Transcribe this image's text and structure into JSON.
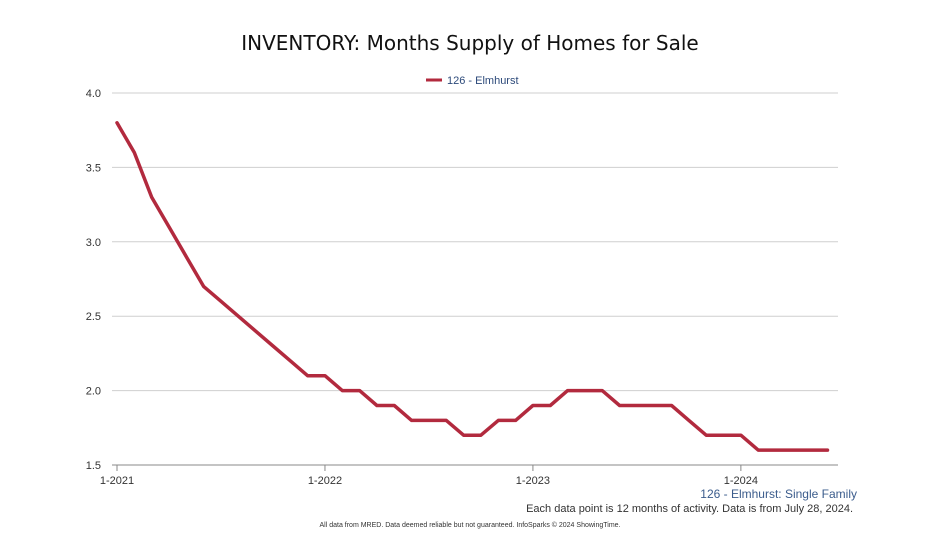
{
  "chart_data": {
    "type": "line",
    "title": "INVENTORY: Months Supply of Homes for Sale",
    "xlabel": "",
    "ylabel": "",
    "ylim": [
      1.5,
      4.0
    ],
    "y_ticks": [
      1.5,
      2.0,
      2.5,
      3.0,
      3.5,
      4.0
    ],
    "y_tick_labels": [
      "1.5",
      "2.0",
      "2.5",
      "3.0",
      "3.5",
      "4.0"
    ],
    "x_ticks": [
      {
        "index": 0,
        "label": "1-2021"
      },
      {
        "index": 12,
        "label": "1-2022"
      },
      {
        "index": 24,
        "label": "1-2023"
      },
      {
        "index": 36,
        "label": "1-2024"
      }
    ],
    "grid": true,
    "legend_position": "top-center",
    "series": [
      {
        "name": "126 - Elmhurst",
        "color": "#b22a3e",
        "x": [
          "2021-01",
          "2021-02",
          "2021-03",
          "2021-04",
          "2021-05",
          "2021-06",
          "2021-07",
          "2021-08",
          "2021-09",
          "2021-10",
          "2021-11",
          "2021-12",
          "2022-01",
          "2022-02",
          "2022-03",
          "2022-04",
          "2022-05",
          "2022-06",
          "2022-07",
          "2022-08",
          "2022-09",
          "2022-10",
          "2022-11",
          "2022-12",
          "2023-01",
          "2023-02",
          "2023-03",
          "2023-04",
          "2023-05",
          "2023-06",
          "2023-07",
          "2023-08",
          "2023-09",
          "2023-10",
          "2023-11",
          "2023-12",
          "2024-01",
          "2024-02",
          "2024-03",
          "2024-04",
          "2024-05",
          "2024-06"
        ],
        "values": [
          3.8,
          3.6,
          3.3,
          3.1,
          2.9,
          2.7,
          2.6,
          2.5,
          2.4,
          2.3,
          2.2,
          2.1,
          2.1,
          2.0,
          2.0,
          1.9,
          1.9,
          1.8,
          1.8,
          1.8,
          1.7,
          1.7,
          1.8,
          1.8,
          1.9,
          1.9,
          2.0,
          2.0,
          2.0,
          1.9,
          1.9,
          1.9,
          1.9,
          1.8,
          1.7,
          1.7,
          1.7,
          1.6,
          1.6,
          1.6,
          1.6,
          1.6
        ]
      }
    ],
    "series_note": "126 - Elmhurst: Single Family",
    "footnote": "Each data point is 12 months of activity. Data is from July 28, 2024.",
    "disclaimer": "All data from MRED. Data deemed reliable but not guaranteed. InfoSparks © 2024 ShowingTime."
  }
}
